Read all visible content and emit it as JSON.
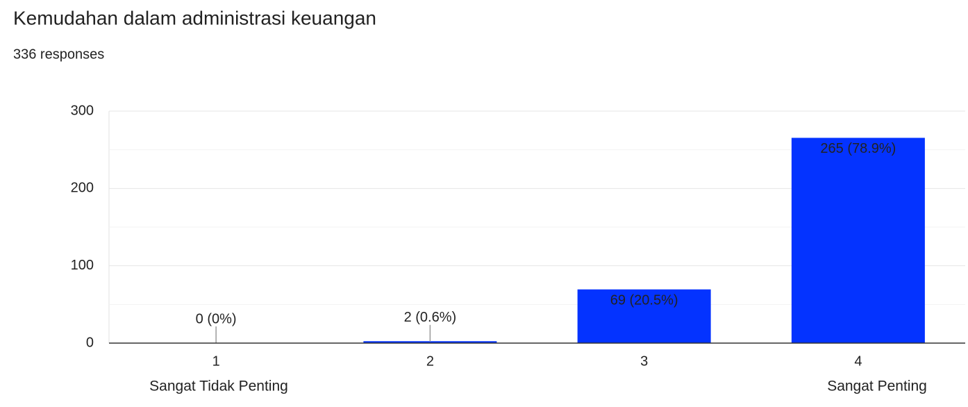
{
  "chart_data": {
    "type": "bar",
    "title": "Kemudahan dalam administrasi keuangan",
    "subtitle": "336 responses",
    "categories": [
      "1",
      "2",
      "3",
      "4"
    ],
    "values": [
      0,
      2,
      69,
      265
    ],
    "value_labels": [
      "0 (0%)",
      "2 (0.6%)",
      "69 (20.5%)",
      "265 (78.9%)"
    ],
    "scale_labels": [
      "Sangat Tidak Penting",
      "Sangat Penting"
    ],
    "color": "#0433ff",
    "ylim": [
      0,
      300
    ],
    "yticks": [
      0,
      100,
      200,
      300
    ],
    "minor_yticks": [
      50,
      150,
      250
    ],
    "grid": true
  }
}
